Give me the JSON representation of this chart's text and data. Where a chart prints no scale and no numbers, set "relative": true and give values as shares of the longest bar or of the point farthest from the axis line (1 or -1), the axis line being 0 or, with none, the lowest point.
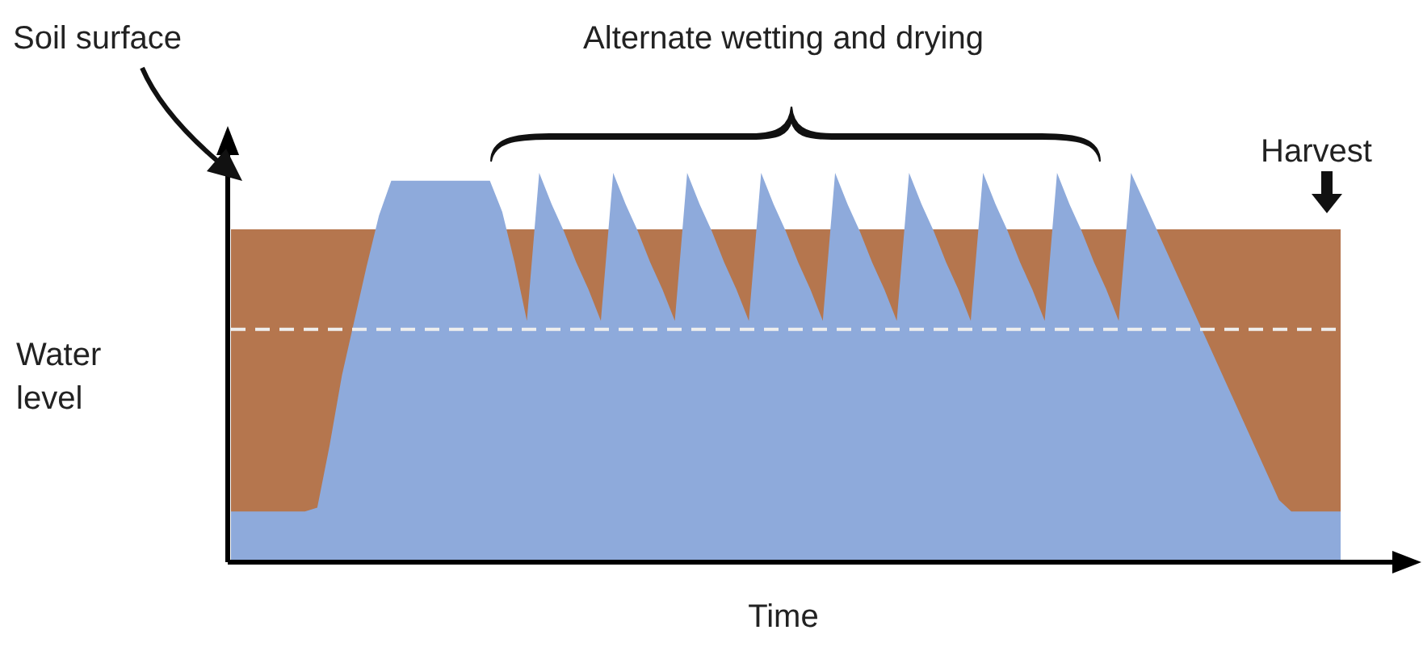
{
  "chart_data": {
    "type": "area",
    "relative": true,
    "xlabel": "Time",
    "ylabel": "Water level",
    "annotations": [
      "Soil surface",
      "Alternate wetting and drying",
      "Harvest"
    ],
    "categories": [
      null,
      null,
      null,
      null,
      null,
      null,
      null,
      null,
      null,
      null,
      null,
      null,
      null,
      null,
      null,
      null,
      null,
      null,
      null,
      null,
      null,
      null,
      null,
      null,
      null,
      null,
      null,
      null,
      null,
      null,
      null,
      null,
      null,
      null,
      null,
      null,
      null,
      null,
      null,
      null,
      null,
      null,
      null,
      null,
      null,
      null,
      null,
      null,
      null,
      null,
      null,
      null,
      null,
      null,
      null,
      null,
      null,
      null,
      null,
      null,
      null,
      null,
      null,
      null,
      null,
      null,
      null,
      null,
      null,
      null,
      null,
      null,
      null,
      null,
      null,
      null,
      null,
      null,
      null,
      null,
      null,
      null,
      null,
      null,
      null,
      null,
      null,
      null,
      null,
      null,
      null
    ],
    "series": [
      {
        "color": "#8eaadb",
        "values": [
          0.13,
          0.13,
          0.13,
          0.13,
          0.13,
          0.13,
          0.13,
          0.14,
          0.3,
          0.48,
          0.62,
          0.76,
          0.89,
          0.98,
          0.98,
          0.98,
          0.98,
          0.98,
          0.98,
          0.98,
          0.98,
          0.98,
          0.9,
          0.77,
          0.62,
          1,
          0.92,
          0.85,
          0.77,
          0.7,
          0.62,
          1,
          0.92,
          0.85,
          0.77,
          0.7,
          0.62,
          1,
          0.92,
          0.85,
          0.77,
          0.7,
          0.62,
          1,
          0.92,
          0.85,
          0.77,
          0.7,
          0.62,
          1,
          0.92,
          0.85,
          0.77,
          0.7,
          0.62,
          1,
          0.92,
          0.85,
          0.77,
          0.7,
          0.62,
          1,
          0.92,
          0.85,
          0.77,
          0.7,
          0.62,
          1,
          0.92,
          0.85,
          0.77,
          0.7,
          0.62,
          1,
          0.93,
          0.86,
          0.79,
          0.72,
          0.65,
          0.58,
          0.51,
          0.44,
          0.37,
          0.3,
          0.23,
          0.16,
          0.13,
          0.13,
          0.13,
          0.13,
          0.13
        ]
      }
    ],
    "bands": [
      {
        "axis": "y",
        "from": 0,
        "to": 0.855,
        "color": "#b5764e"
      }
    ],
    "ref_lines": [
      {
        "axis": "y",
        "value": 0.598,
        "color": "#eeeeee",
        "line_style": "dashed"
      }
    ]
  }
}
